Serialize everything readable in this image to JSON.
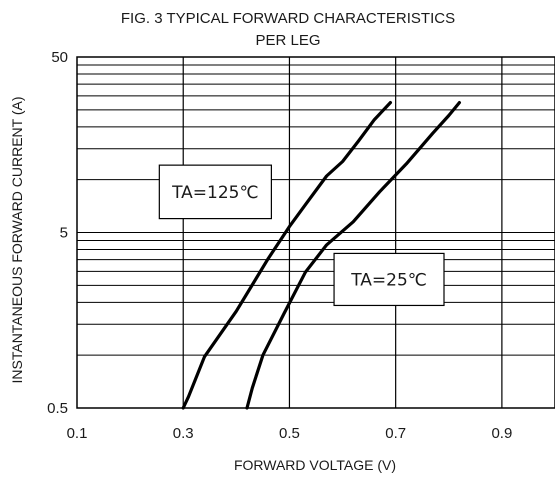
{
  "chart_data": {
    "type": "line",
    "title": "FIG. 3 TYPICAL FORWARD CHARACTERISTICS",
    "subtitle": "PER LEG",
    "xlabel": "FORWARD VOLTAGE (V)",
    "ylabel": "INSTANTANEOUS FORWARD CURRENT (A)",
    "xlim": [
      0.1,
      1.0
    ],
    "ylim": [
      0.5,
      50
    ],
    "y_scale": "log",
    "x_ticks": [
      0.1,
      0.3,
      0.5,
      0.7,
      0.9
    ],
    "x_tick_labels": [
      "0.1",
      "0.3",
      "0.5",
      "0.7",
      "0.9"
    ],
    "y_tick_labels": [
      "0.5",
      "5",
      "50"
    ],
    "grid": true,
    "legend": "none",
    "series": [
      {
        "annotation": "TA=125℃",
        "color": "#000000",
        "x": [
          0.3,
          0.31,
          0.34,
          0.4,
          0.46,
          0.5,
          0.53,
          0.57,
          0.6,
          0.63,
          0.66,
          0.69
        ],
        "y": [
          0.5,
          0.58,
          0.98,
          1.78,
          3.55,
          5.4,
          7.2,
          10.5,
          12.7,
          16.6,
          22.0,
          27.5
        ]
      },
      {
        "annotation": "TA=25℃",
        "color": "#000000",
        "x": [
          0.42,
          0.43,
          0.45,
          0.49,
          0.53,
          0.57,
          0.62,
          0.67,
          0.72,
          0.77,
          0.8,
          0.82
        ],
        "y": [
          0.5,
          0.65,
          1.0,
          1.73,
          2.97,
          4.25,
          5.75,
          8.54,
          12.3,
          18.4,
          23.2,
          27.5
        ]
      }
    ]
  }
}
